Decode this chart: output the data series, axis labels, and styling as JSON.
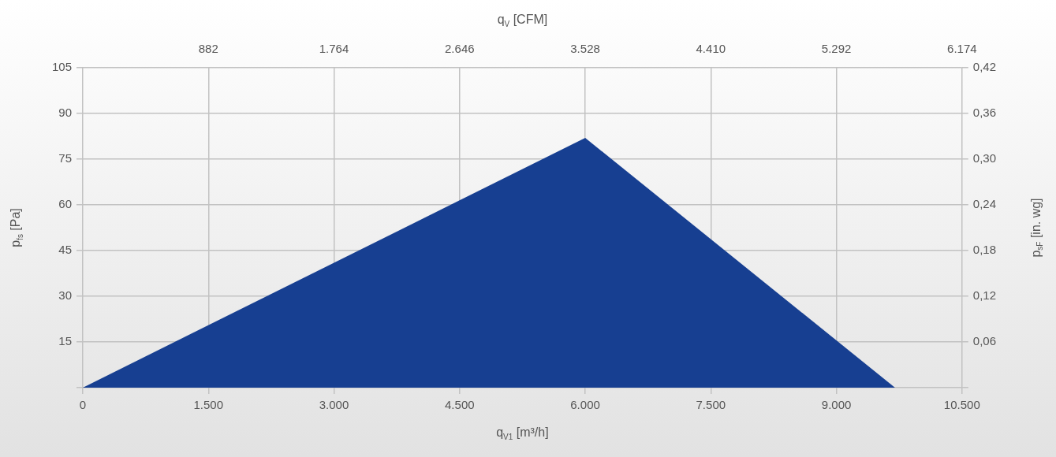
{
  "chart_data": {
    "type": "area",
    "xlabel": "q$_{V1}$ [m³/h]",
    "x2label": "q$_{V}$ [CFM]",
    "ylabel": "p$_{fs}$ [Pa]",
    "y2label": "p$_{sF}$ [in. wg]",
    "x": [
      0,
      6000,
      9700
    ],
    "series": [
      {
        "color": "#173f91",
        "values": [
          0,
          82,
          0
        ]
      }
    ],
    "xlim": [
      0,
      10500
    ],
    "xticks": [
      0,
      {
        "value": 1500,
        "label": "1.500"
      },
      {
        "value": 3000,
        "label": "3.000"
      },
      {
        "value": 4500,
        "label": "4.500"
      },
      {
        "value": 6000,
        "label": "6.000"
      },
      {
        "value": 7500,
        "label": "7.500"
      },
      {
        "value": 9000,
        "label": "9.000"
      },
      {
        "value": 10500,
        "label": "10.500"
      }
    ],
    "x2lim": [
      0,
      6174
    ],
    "x2ticks": [
      882,
      {
        "value": 1764,
        "label": "1.764"
      },
      {
        "value": 2646,
        "label": "2.646"
      },
      {
        "value": 3528,
        "label": "3.528"
      },
      {
        "value": 4410,
        "label": "4.410"
      },
      {
        "value": 5292,
        "label": "5.292"
      },
      {
        "value": 6174,
        "label": "6.174"
      }
    ],
    "ylim": [
      0,
      105
    ],
    "yticks": [
      {
        "value": 0,
        "label": null
      },
      15,
      30,
      45,
      60,
      75,
      90,
      105
    ],
    "y2lim": [
      0,
      0.42
    ],
    "y2ticks": [
      {
        "value": 0,
        "label": null
      },
      {
        "value": 0.06,
        "label": "0,06"
      },
      {
        "value": 0.12,
        "label": "0,12"
      },
      {
        "value": 0.18,
        "label": "0,18"
      },
      {
        "value": 0.24,
        "label": "0,24"
      },
      {
        "value": 0.3,
        "label": "0,30"
      },
      {
        "value": 0.36,
        "label": "0,36"
      },
      {
        "value": 0.42,
        "label": "0,42"
      }
    ],
    "grid": true,
    "legend": false,
    "marker": "none"
  }
}
